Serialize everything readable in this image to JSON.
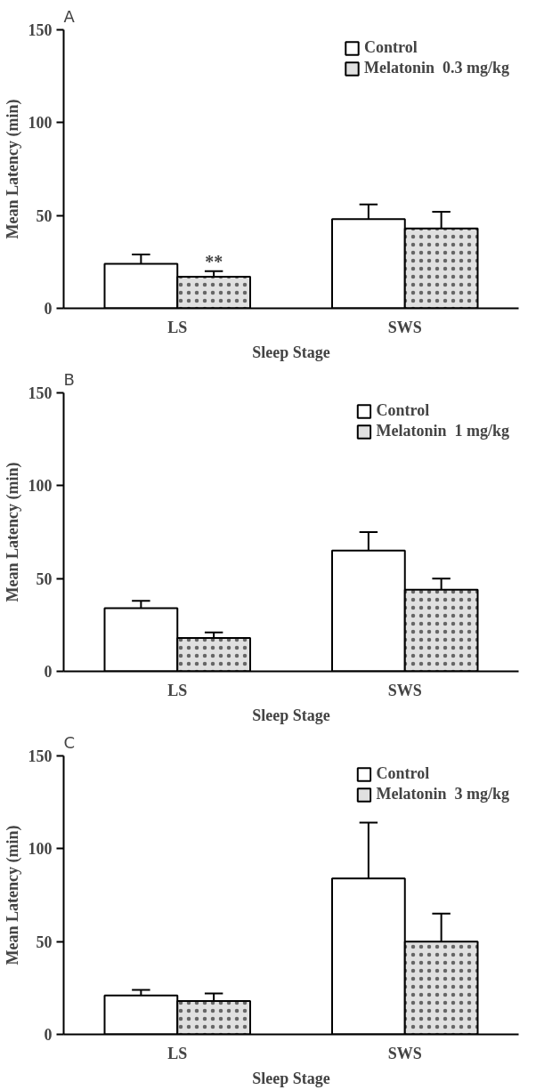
{
  "chart_data": [
    {
      "type": "bar",
      "title": "A",
      "xlabel": "Sleep Stage",
      "ylabel": "Mean Latency (min)",
      "categories": [
        "LS",
        "SWS"
      ],
      "series": [
        {
          "name": "Control",
          "color": "#ffffff",
          "values": [
            24,
            48
          ],
          "errors": [
            5,
            8
          ]
        },
        {
          "name": "Melatonin  0.3 mg/kg",
          "color": "#e0e0e0",
          "values": [
            17,
            43
          ],
          "errors": [
            3,
            9
          ]
        }
      ],
      "ylim": [
        0,
        150
      ],
      "yticks": [
        0,
        50,
        100,
        150
      ],
      "grid": false,
      "legend": "top right",
      "annotations": [
        {
          "text": "**",
          "x": "LS",
          "y": 20
        }
      ]
    },
    {
      "type": "bar",
      "title": "B",
      "xlabel": "Sleep Stage",
      "ylabel": "Mean Latency (min)",
      "categories": [
        "LS",
        "SWS"
      ],
      "series": [
        {
          "name": "Control",
          "color": "#ffffff",
          "values": [
            34,
            65
          ],
          "errors": [
            4,
            10
          ]
        },
        {
          "name": "Melatonin  1 mg/kg",
          "color": "#e0e0e0",
          "values": [
            18,
            44
          ],
          "errors": [
            3,
            6
          ]
        }
      ],
      "ylim": [
        0,
        150
      ],
      "yticks": [
        0,
        50,
        100,
        150
      ],
      "grid": false,
      "legend": "top right"
    },
    {
      "type": "bar",
      "title": "C",
      "xlabel": "Sleep Stage",
      "ylabel": "Mean Latency (min)",
      "categories": [
        "LS",
        "SWS"
      ],
      "series": [
        {
          "name": "Control",
          "color": "#ffffff",
          "values": [
            21,
            84
          ],
          "errors": [
            3,
            30
          ]
        },
        {
          "name": "Melatonin  3 mg/kg",
          "color": "#e0e0e0",
          "values": [
            18,
            50
          ],
          "errors": [
            4,
            15
          ]
        }
      ],
      "ylim": [
        0,
        150
      ],
      "yticks": [
        0,
        50,
        100,
        150
      ],
      "grid": false,
      "legend": "top right"
    }
  ]
}
